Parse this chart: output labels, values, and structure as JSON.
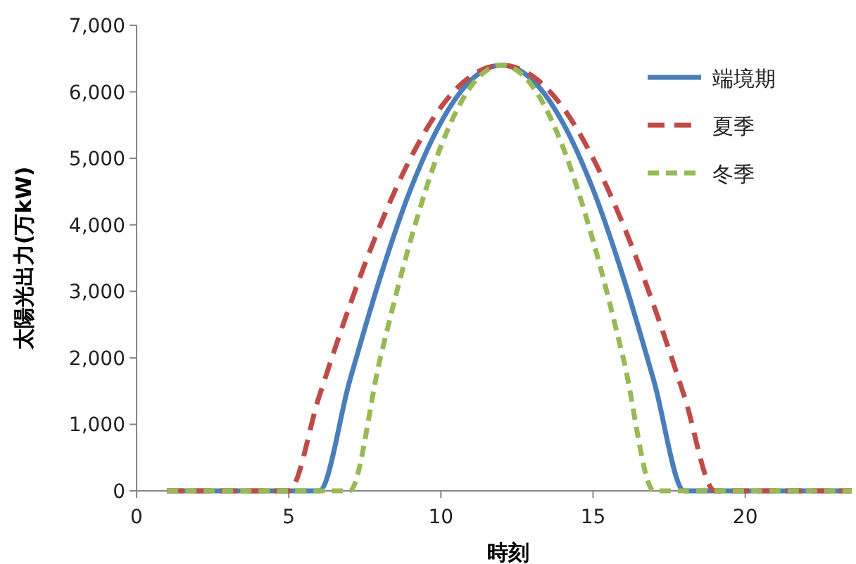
{
  "chart_data": {
    "type": "line",
    "xlabel": "時刻",
    "ylabel": "太陽光出力(万kW)",
    "x": [
      1,
      2,
      3,
      4,
      5,
      6,
      7,
      8,
      9,
      10,
      11,
      12,
      13,
      14,
      15,
      16,
      17,
      18,
      19,
      20,
      21,
      22,
      23,
      23.5
    ],
    "series": [
      {
        "name": "端境期",
        "color": "#4a7ebb",
        "line_style": "solid",
        "values": [
          0,
          0,
          0,
          0,
          0,
          0,
          1650,
          3200,
          4530,
          5540,
          6180,
          6400,
          6180,
          5540,
          4530,
          3200,
          1650,
          0,
          0,
          0,
          0,
          0,
          0,
          0
        ]
      },
      {
        "name": "夏季",
        "color": "#be4b48",
        "line_style": "dashed",
        "values": [
          0,
          0,
          0,
          0,
          0,
          1420,
          2780,
          3990,
          5000,
          5770,
          6240,
          6400,
          6240,
          5770,
          5000,
          3990,
          2780,
          1420,
          0,
          0,
          0,
          0,
          0,
          0
        ]
      },
      {
        "name": "冬季",
        "color": "#98b954",
        "line_style": "dashed",
        "values": [
          0,
          0,
          0,
          0,
          0,
          0,
          0,
          1980,
          3760,
          5180,
          6090,
          6400,
          6090,
          5180,
          3760,
          1980,
          0,
          0,
          0,
          0,
          0,
          0,
          0,
          0
        ]
      }
    ],
    "xlim": [
      0,
      23.5
    ],
    "xticks": [
      0,
      5,
      10,
      15,
      20
    ],
    "ylim": [
      0,
      7000
    ],
    "yticks": [
      0,
      {
        "value": 1000,
        "label": "1,000"
      },
      {
        "value": 2000,
        "label": "2,000"
      },
      {
        "value": 3000,
        "label": "3,000"
      },
      {
        "value": 4000,
        "label": "4,000"
      },
      {
        "value": 5000,
        "label": "5,000"
      },
      {
        "value": 6000,
        "label": "6,000"
      },
      {
        "value": 7000,
        "label": "7,000"
      }
    ],
    "grid": false,
    "legend": "top right"
  }
}
